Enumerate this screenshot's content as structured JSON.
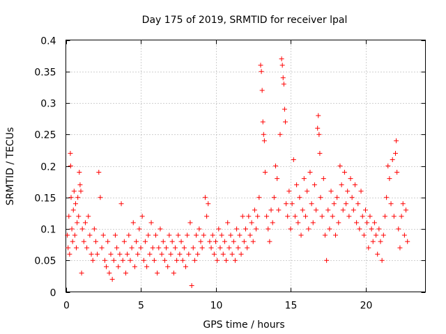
{
  "chart_data": {
    "type": "scatter",
    "title": "Day 175 of 2019, SRMTID for receiver lpal",
    "xlabel": "GPS time / hours",
    "ylabel": "SRMTID / TECUs",
    "xlim": [
      0,
      24
    ],
    "ylim": [
      0,
      0.4
    ],
    "x_ticks": [
      0,
      5,
      10,
      15,
      20
    ],
    "x_tick_labels": [
      "0",
      "5",
      "10",
      "15",
      "20"
    ],
    "y_ticks": [
      0,
      0.05,
      0.1,
      0.15,
      0.2,
      0.25,
      0.3,
      0.35,
      0.4
    ],
    "y_tick_labels": [
      "0",
      "0.05",
      "0.1",
      "0.15",
      "0.2",
      "0.25",
      "0.3",
      "0.35",
      "0.4"
    ],
    "grid": true,
    "marker": "+",
    "series": [
      {
        "name": "SRMTID",
        "color": "#ff0000",
        "points": [
          [
            0.1,
            0.09
          ],
          [
            0.15,
            0.07
          ],
          [
            0.2,
            0.12
          ],
          [
            0.25,
            0.06
          ],
          [
            0.3,
            0.22
          ],
          [
            0.32,
            0.2
          ],
          [
            0.35,
            0.15
          ],
          [
            0.4,
            0.1
          ],
          [
            0.45,
            0.08
          ],
          [
            0.5,
            0.13
          ],
          [
            0.55,
            0.16
          ],
          [
            0.6,
            0.09
          ],
          [
            0.65,
            0.14
          ],
          [
            0.7,
            0.07
          ],
          [
            0.75,
            0.11
          ],
          [
            0.8,
            0.15
          ],
          [
            0.85,
            0.12
          ],
          [
            0.9,
            0.19
          ],
          [
            0.95,
            0.17
          ],
          [
            1.0,
            0.16
          ],
          [
            1.05,
            0.03
          ],
          [
            1.1,
            0.1
          ],
          [
            1.2,
            0.08
          ],
          [
            1.3,
            0.11
          ],
          [
            1.4,
            0.07
          ],
          [
            1.5,
            0.12
          ],
          [
            1.6,
            0.09
          ],
          [
            1.7,
            0.06
          ],
          [
            1.8,
            0.05
          ],
          [
            1.9,
            0.1
          ],
          [
            2.0,
            0.08
          ],
          [
            2.1,
            0.06
          ],
          [
            2.2,
            0.19
          ],
          [
            2.3,
            0.15
          ],
          [
            2.4,
            0.07
          ],
          [
            2.5,
            0.09
          ],
          [
            2.6,
            0.05
          ],
          [
            2.7,
            0.04
          ],
          [
            2.8,
            0.08
          ],
          [
            2.9,
            0.03
          ],
          [
            3.0,
            0.06
          ],
          [
            3.1,
            0.02
          ],
          [
            3.2,
            0.05
          ],
          [
            3.3,
            0.09
          ],
          [
            3.4,
            0.07
          ],
          [
            3.5,
            0.04
          ],
          [
            3.6,
            0.06
          ],
          [
            3.7,
            0.14
          ],
          [
            3.8,
            0.05
          ],
          [
            3.9,
            0.08
          ],
          [
            4.0,
            0.03
          ],
          [
            4.1,
            0.06
          ],
          [
            4.2,
            0.09
          ],
          [
            4.3,
            0.05
          ],
          [
            4.4,
            0.07
          ],
          [
            4.5,
            0.11
          ],
          [
            4.6,
            0.04
          ],
          [
            4.7,
            0.08
          ],
          [
            4.8,
            0.06
          ],
          [
            4.9,
            0.1
          ],
          [
            5.0,
            0.07
          ],
          [
            5.1,
            0.12
          ],
          [
            5.2,
            0.05
          ],
          [
            5.3,
            0.08
          ],
          [
            5.4,
            0.04
          ],
          [
            5.5,
            0.09
          ],
          [
            5.6,
            0.06
          ],
          [
            5.7,
            0.11
          ],
          [
            5.8,
            0.07
          ],
          [
            5.9,
            0.05
          ],
          [
            6.0,
            0.09
          ],
          [
            6.1,
            0.03
          ],
          [
            6.2,
            0.07
          ],
          [
            6.3,
            0.1
          ],
          [
            6.4,
            0.06
          ],
          [
            6.5,
            0.08
          ],
          [
            6.6,
            0.05
          ],
          [
            6.7,
            0.07
          ],
          [
            6.8,
            0.04
          ],
          [
            6.9,
            0.09
          ],
          [
            7.0,
            0.06
          ],
          [
            7.1,
            0.08
          ],
          [
            7.2,
            0.03
          ],
          [
            7.3,
            0.07
          ],
          [
            7.4,
            0.05
          ],
          [
            7.5,
            0.09
          ],
          [
            7.6,
            0.06
          ],
          [
            7.7,
            0.08
          ],
          [
            7.8,
            0.05
          ],
          [
            7.9,
            0.07
          ],
          [
            8.0,
            0.04
          ],
          [
            8.1,
            0.09
          ],
          [
            8.2,
            0.06
          ],
          [
            8.3,
            0.11
          ],
          [
            8.4,
            0.01
          ],
          [
            8.5,
            0.07
          ],
          [
            8.6,
            0.05
          ],
          [
            8.7,
            0.09
          ],
          [
            8.8,
            0.06
          ],
          [
            8.9,
            0.1
          ],
          [
            9.0,
            0.08
          ],
          [
            9.1,
            0.07
          ],
          [
            9.2,
            0.09
          ],
          [
            9.3,
            0.15
          ],
          [
            9.4,
            0.12
          ],
          [
            9.5,
            0.14
          ],
          [
            9.6,
            0.08
          ],
          [
            9.7,
            0.07
          ],
          [
            9.8,
            0.09
          ],
          [
            9.9,
            0.06
          ],
          [
            10.0,
            0.08
          ],
          [
            10.1,
            0.05
          ],
          [
            10.2,
            0.1
          ],
          [
            10.3,
            0.07
          ],
          [
            10.4,
            0.09
          ],
          [
            10.5,
            0.06
          ],
          [
            10.6,
            0.08
          ],
          [
            10.7,
            0.05
          ],
          [
            10.8,
            0.11
          ],
          [
            10.9,
            0.07
          ],
          [
            11.0,
            0.09
          ],
          [
            11.1,
            0.06
          ],
          [
            11.2,
            0.08
          ],
          [
            11.3,
            0.05
          ],
          [
            11.4,
            0.1
          ],
          [
            11.5,
            0.07
          ],
          [
            11.6,
            0.09
          ],
          [
            11.7,
            0.06
          ],
          [
            11.8,
            0.12
          ],
          [
            11.9,
            0.08
          ],
          [
            12.0,
            0.1
          ],
          [
            12.1,
            0.07
          ],
          [
            12.2,
            0.12
          ],
          [
            12.3,
            0.09
          ],
          [
            12.4,
            0.11
          ],
          [
            12.5,
            0.08
          ],
          [
            12.6,
            0.13
          ],
          [
            12.7,
            0.1
          ],
          [
            12.8,
            0.12
          ],
          [
            12.9,
            0.15
          ],
          [
            13.0,
            0.36
          ],
          [
            13.05,
            0.35
          ],
          [
            13.1,
            0.32
          ],
          [
            13.15,
            0.27
          ],
          [
            13.2,
            0.25
          ],
          [
            13.25,
            0.24
          ],
          [
            13.3,
            0.19
          ],
          [
            13.4,
            0.12
          ],
          [
            13.5,
            0.1
          ],
          [
            13.6,
            0.08
          ],
          [
            13.7,
            0.13
          ],
          [
            13.8,
            0.11
          ],
          [
            13.9,
            0.15
          ],
          [
            14.0,
            0.2
          ],
          [
            14.1,
            0.18
          ],
          [
            14.2,
            0.13
          ],
          [
            14.3,
            0.25
          ],
          [
            14.4,
            0.37
          ],
          [
            14.45,
            0.36
          ],
          [
            14.5,
            0.34
          ],
          [
            14.55,
            0.33
          ],
          [
            14.6,
            0.29
          ],
          [
            14.65,
            0.27
          ],
          [
            14.7,
            0.14
          ],
          [
            14.8,
            0.12
          ],
          [
            14.9,
            0.16
          ],
          [
            15.0,
            0.1
          ],
          [
            15.1,
            0.14
          ],
          [
            15.2,
            0.21
          ],
          [
            15.3,
            0.12
          ],
          [
            15.4,
            0.17
          ],
          [
            15.5,
            0.11
          ],
          [
            15.6,
            0.15
          ],
          [
            15.7,
            0.09
          ],
          [
            15.8,
            0.13
          ],
          [
            15.9,
            0.18
          ],
          [
            16.0,
            0.12
          ],
          [
            16.1,
            0.16
          ],
          [
            16.2,
            0.1
          ],
          [
            16.3,
            0.19
          ],
          [
            16.4,
            0.14
          ],
          [
            16.5,
            0.11
          ],
          [
            16.6,
            0.17
          ],
          [
            16.7,
            0.13
          ],
          [
            16.8,
            0.26
          ],
          [
            16.85,
            0.28
          ],
          [
            16.9,
            0.25
          ],
          [
            16.95,
            0.22
          ],
          [
            17.0,
            0.15
          ],
          [
            17.1,
            0.12
          ],
          [
            17.2,
            0.18
          ],
          [
            17.3,
            0.09
          ],
          [
            17.4,
            0.05
          ],
          [
            17.5,
            0.13
          ],
          [
            17.6,
            0.1
          ],
          [
            17.7,
            0.16
          ],
          [
            17.8,
            0.12
          ],
          [
            17.9,
            0.14
          ],
          [
            18.0,
            0.09
          ],
          [
            18.1,
            0.15
          ],
          [
            18.2,
            0.11
          ],
          [
            18.3,
            0.2
          ],
          [
            18.4,
            0.17
          ],
          [
            18.5,
            0.13
          ],
          [
            18.6,
            0.19
          ],
          [
            18.7,
            0.14
          ],
          [
            18.8,
            0.16
          ],
          [
            18.9,
            0.12
          ],
          [
            19.0,
            0.18
          ],
          [
            19.1,
            0.15
          ],
          [
            19.2,
            0.13
          ],
          [
            19.3,
            0.17
          ],
          [
            19.4,
            0.11
          ],
          [
            19.5,
            0.14
          ],
          [
            19.6,
            0.1
          ],
          [
            19.7,
            0.16
          ],
          [
            19.8,
            0.12
          ],
          [
            19.9,
            0.09
          ],
          [
            20.0,
            0.13
          ],
          [
            20.1,
            0.11
          ],
          [
            20.2,
            0.07
          ],
          [
            20.3,
            0.12
          ],
          [
            20.4,
            0.1
          ],
          [
            20.5,
            0.08
          ],
          [
            20.6,
            0.11
          ],
          [
            20.7,
            0.09
          ],
          [
            20.8,
            0.06
          ],
          [
            20.9,
            0.1
          ],
          [
            21.0,
            0.08
          ],
          [
            21.1,
            0.05
          ],
          [
            21.2,
            0.09
          ],
          [
            21.3,
            0.12
          ],
          [
            21.4,
            0.15
          ],
          [
            21.5,
            0.2
          ],
          [
            21.6,
            0.18
          ],
          [
            21.7,
            0.14
          ],
          [
            21.8,
            0.21
          ],
          [
            21.9,
            0.12
          ],
          [
            22.0,
            0.22
          ],
          [
            22.05,
            0.24
          ],
          [
            22.1,
            0.19
          ],
          [
            22.2,
            0.1
          ],
          [
            22.3,
            0.07
          ],
          [
            22.4,
            0.12
          ],
          [
            22.5,
            0.14
          ],
          [
            22.6,
            0.09
          ],
          [
            22.7,
            0.13
          ],
          [
            22.8,
            0.08
          ]
        ]
      }
    ]
  }
}
